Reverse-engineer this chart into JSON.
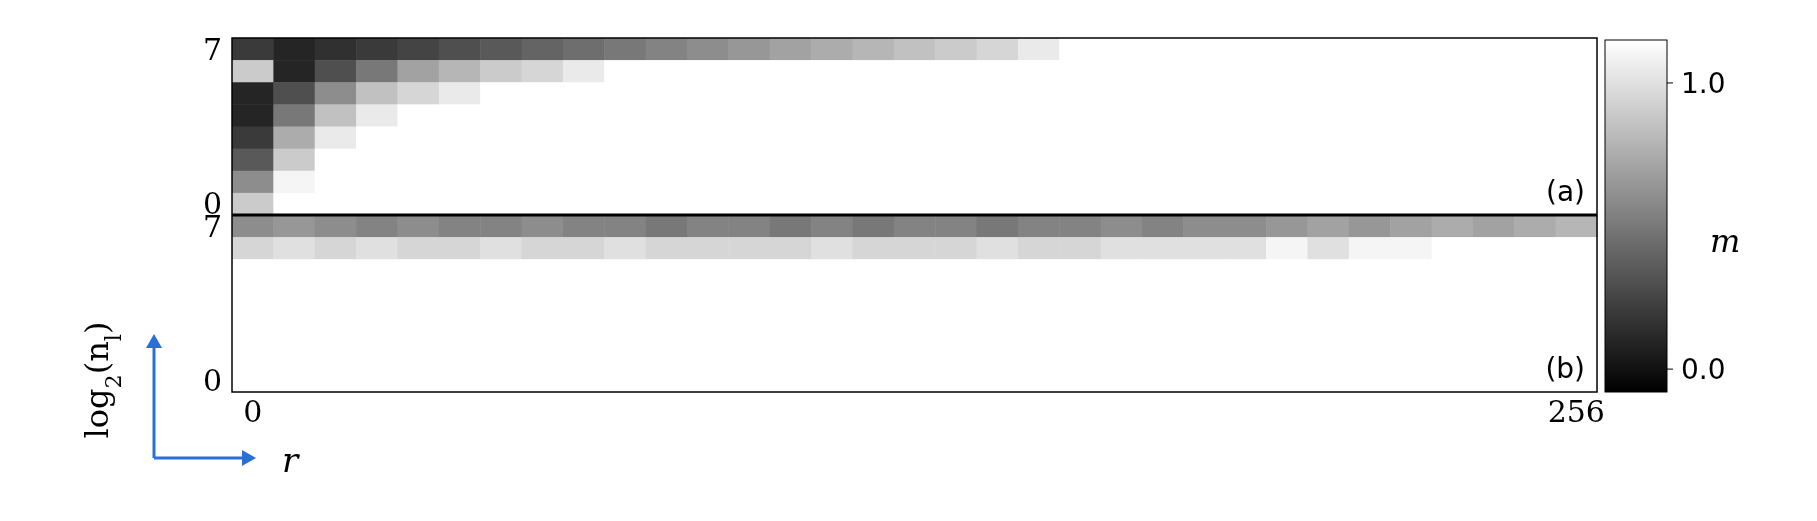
{
  "chart_data": {
    "type": "heatmap",
    "categories": [
      "0",
      null,
      null,
      null,
      null,
      null,
      null,
      null,
      null,
      null,
      null,
      null,
      null,
      null,
      null,
      null,
      null,
      null,
      null,
      null,
      null,
      null,
      null,
      null,
      null,
      null,
      null,
      null,
      null,
      null,
      null,
      null,
      "256"
    ],
    "y_categories": [
      "7",
      null,
      null,
      null,
      null,
      null,
      null,
      "0",
      "7",
      null,
      null,
      null,
      null,
      null,
      null,
      "0"
    ],
    "xlabel": "r",
    "ylabel": "log$_{2}$(n$_{l}$)",
    "clabel": "m",
    "clim": [
      -0.08,
      1.15
    ],
    "cticks": [
      {
        "value": 0,
        "label": "0.0"
      },
      {
        "value": 1,
        "label": "1.0"
      }
    ],
    "annotations": [
      "(a)",
      "(b)"
    ],
    "cells": [
      [
        0.2,
        0.1,
        0.15,
        0.2,
        0.25,
        0.3,
        0.35,
        0.4,
        0.45,
        0.5,
        0.55,
        0.6,
        0.65,
        0.7,
        0.75,
        0.8,
        0.85,
        0.9,
        0.95,
        1.05,
        1.15,
        1.15,
        1.15,
        1.15,
        1.15,
        1.15,
        1.15,
        1.15,
        1.15,
        1.15,
        1.15,
        1.15,
        1.15
      ],
      [
        0.9,
        0.1,
        0.3,
        0.5,
        0.7,
        0.8,
        0.9,
        0.95,
        1.05,
        1.15,
        1.15,
        1.15,
        1.15,
        1.15,
        1.15,
        1.15,
        1.15,
        1.15,
        1.15,
        1.15,
        1.15,
        1.15,
        1.15,
        1.15,
        1.15,
        1.15,
        1.15,
        1.15,
        1.15,
        1.15,
        1.15,
        1.15,
        1.15
      ],
      [
        0.1,
        0.3,
        0.6,
        0.85,
        0.95,
        1.05,
        1.15,
        1.15,
        1.15,
        1.15,
        1.15,
        1.15,
        1.15,
        1.15,
        1.15,
        1.15,
        1.15,
        1.15,
        1.15,
        1.15,
        1.15,
        1.15,
        1.15,
        1.15,
        1.15,
        1.15,
        1.15,
        1.15,
        1.15,
        1.15,
        1.15,
        1.15,
        1.15
      ],
      [
        0.1,
        0.5,
        0.85,
        1.05,
        1.15,
        1.15,
        1.15,
        1.15,
        1.15,
        1.15,
        1.15,
        1.15,
        1.15,
        1.15,
        1.15,
        1.15,
        1.15,
        1.15,
        1.15,
        1.15,
        1.15,
        1.15,
        1.15,
        1.15,
        1.15,
        1.15,
        1.15,
        1.15,
        1.15,
        1.15,
        1.15,
        1.15,
        1.15
      ],
      [
        0.2,
        0.75,
        1.05,
        1.15,
        1.15,
        1.15,
        1.15,
        1.15,
        1.15,
        1.15,
        1.15,
        1.15,
        1.15,
        1.15,
        1.15,
        1.15,
        1.15,
        1.15,
        1.15,
        1.15,
        1.15,
        1.15,
        1.15,
        1.15,
        1.15,
        1.15,
        1.15,
        1.15,
        1.15,
        1.15,
        1.15,
        1.15,
        1.15
      ],
      [
        0.35,
        0.9,
        1.15,
        1.15,
        1.15,
        1.15,
        1.15,
        1.15,
        1.15,
        1.15,
        1.15,
        1.15,
        1.15,
        1.15,
        1.15,
        1.15,
        1.15,
        1.15,
        1.15,
        1.15,
        1.15,
        1.15,
        1.15,
        1.15,
        1.15,
        1.15,
        1.15,
        1.15,
        1.15,
        1.15,
        1.15,
        1.15,
        1.15
      ],
      [
        0.6,
        1.1,
        1.15,
        1.15,
        1.15,
        1.15,
        1.15,
        1.15,
        1.15,
        1.15,
        1.15,
        1.15,
        1.15,
        1.15,
        1.15,
        1.15,
        1.15,
        1.15,
        1.15,
        1.15,
        1.15,
        1.15,
        1.15,
        1.15,
        1.15,
        1.15,
        1.15,
        1.15,
        1.15,
        1.15,
        1.15,
        1.15,
        1.15
      ],
      [
        0.9,
        1.15,
        1.15,
        1.15,
        1.15,
        1.15,
        1.15,
        1.15,
        1.15,
        1.15,
        1.15,
        1.15,
        1.15,
        1.15,
        1.15,
        1.15,
        1.15,
        1.15,
        1.15,
        1.15,
        1.15,
        1.15,
        1.15,
        1.15,
        1.15,
        1.15,
        1.15,
        1.15,
        1.15,
        1.15,
        1.15,
        1.15,
        1.15
      ],
      [
        0.6,
        0.65,
        0.6,
        0.55,
        0.6,
        0.55,
        0.55,
        0.6,
        0.55,
        0.55,
        0.5,
        0.55,
        0.55,
        0.5,
        0.55,
        0.5,
        0.55,
        0.55,
        0.5,
        0.55,
        0.55,
        0.6,
        0.55,
        0.6,
        0.6,
        0.65,
        0.7,
        0.65,
        0.7,
        0.75,
        0.7,
        0.75,
        0.8
      ],
      [
        0.95,
        1.0,
        0.95,
        1.0,
        0.95,
        0.95,
        1.0,
        0.95,
        0.95,
        1.0,
        0.95,
        0.95,
        0.95,
        0.95,
        1.0,
        0.95,
        0.95,
        0.95,
        1.0,
        0.95,
        0.95,
        1.0,
        1.0,
        1.0,
        1.0,
        1.1,
        1.0,
        1.1,
        1.1,
        1.15,
        1.15,
        1.15,
        1.15
      ],
      [
        1.15,
        1.15,
        1.15,
        1.15,
        1.15,
        1.15,
        1.15,
        1.15,
        1.15,
        1.15,
        1.15,
        1.15,
        1.15,
        1.15,
        1.15,
        1.15,
        1.15,
        1.15,
        1.15,
        1.15,
        1.15,
        1.15,
        1.15,
        1.15,
        1.15,
        1.15,
        1.15,
        1.15,
        1.15,
        1.15,
        1.15,
        1.15,
        1.15
      ],
      [
        1.15,
        1.15,
        1.15,
        1.15,
        1.15,
        1.15,
        1.15,
        1.15,
        1.15,
        1.15,
        1.15,
        1.15,
        1.15,
        1.15,
        1.15,
        1.15,
        1.15,
        1.15,
        1.15,
        1.15,
        1.15,
        1.15,
        1.15,
        1.15,
        1.15,
        1.15,
        1.15,
        1.15,
        1.15,
        1.15,
        1.15,
        1.15,
        1.15
      ],
      [
        1.15,
        1.15,
        1.15,
        1.15,
        1.15,
        1.15,
        1.15,
        1.15,
        1.15,
        1.15,
        1.15,
        1.15,
        1.15,
        1.15,
        1.15,
        1.15,
        1.15,
        1.15,
        1.15,
        1.15,
        1.15,
        1.15,
        1.15,
        1.15,
        1.15,
        1.15,
        1.15,
        1.15,
        1.15,
        1.15,
        1.15,
        1.15,
        1.15
      ],
      [
        1.15,
        1.15,
        1.15,
        1.15,
        1.15,
        1.15,
        1.15,
        1.15,
        1.15,
        1.15,
        1.15,
        1.15,
        1.15,
        1.15,
        1.15,
        1.15,
        1.15,
        1.15,
        1.15,
        1.15,
        1.15,
        1.15,
        1.15,
        1.15,
        1.15,
        1.15,
        1.15,
        1.15,
        1.15,
        1.15,
        1.15,
        1.15,
        1.15
      ],
      [
        1.15,
        1.15,
        1.15,
        1.15,
        1.15,
        1.15,
        1.15,
        1.15,
        1.15,
        1.15,
        1.15,
        1.15,
        1.15,
        1.15,
        1.15,
        1.15,
        1.15,
        1.15,
        1.15,
        1.15,
        1.15,
        1.15,
        1.15,
        1.15,
        1.15,
        1.15,
        1.15,
        1.15,
        1.15,
        1.15,
        1.15,
        1.15,
        1.15
      ],
      [
        1.15,
        1.15,
        1.15,
        1.15,
        1.15,
        1.15,
        1.15,
        1.15,
        1.15,
        1.15,
        1.15,
        1.15,
        1.15,
        1.15,
        1.15,
        1.15,
        1.15,
        1.15,
        1.15,
        1.15,
        1.15,
        1.15,
        1.15,
        1.15,
        1.15,
        1.15,
        1.15,
        1.15,
        1.15,
        1.15,
        1.15,
        1.15,
        1.15
      ]
    ]
  }
}
